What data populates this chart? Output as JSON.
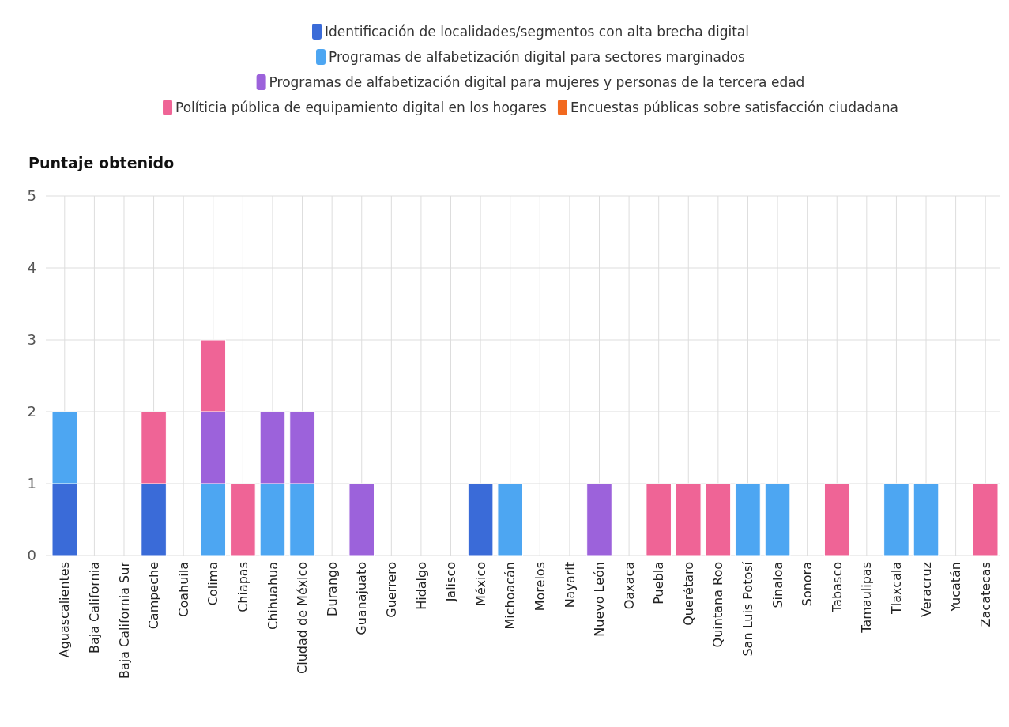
{
  "chart_data": {
    "type": "bar",
    "stacked": true,
    "ylabel": "Puntaje obtenido",
    "legend": "top",
    "grid": true,
    "ylim": [
      0,
      5
    ],
    "yticks": [
      0,
      1,
      2,
      3,
      4,
      5
    ],
    "categories": [
      "Aguascalientes",
      "Baja California",
      "Baja California Sur",
      "Campeche",
      "Coahuila",
      "Colima",
      "Chiapas",
      "Chihuahua",
      "Ciudad de México",
      "Durango",
      "Guanajuato",
      "Guerrero",
      "Hidalgo",
      "Jalisco",
      "México",
      "Michoacán",
      "Morelos",
      "Nayarit",
      "Nuevo León",
      "Oaxaca",
      "Puebla",
      "Querétaro",
      "Quintana Roo",
      "San Luis Potosí",
      "Sinaloa",
      "Sonora",
      "Tabasco",
      "Tamaulipas",
      "Tlaxcala",
      "Veracruz",
      "Yucatán",
      "Zacatecas"
    ],
    "series": [
      {
        "name": "Identificación de localidades/segmentos con alta brecha digital",
        "color": "#3a6bd8",
        "values": [
          1,
          0,
          0,
          1,
          0,
          0,
          0,
          0,
          0,
          0,
          0,
          0,
          0,
          0,
          1,
          0,
          0,
          0,
          0,
          0,
          0,
          0,
          0,
          0,
          0,
          0,
          0,
          0,
          0,
          0,
          0,
          0
        ]
      },
      {
        "name": "Programas de alfabetización digital para sectores marginados",
        "color": "#4da6f2",
        "values": [
          1,
          0,
          0,
          0,
          0,
          1,
          0,
          1,
          1,
          0,
          0,
          0,
          0,
          0,
          0,
          1,
          0,
          0,
          0,
          0,
          0,
          0,
          0,
          1,
          1,
          0,
          0,
          0,
          1,
          1,
          0,
          0
        ]
      },
      {
        "name": "Programas de alfabetización digital para mujeres y personas de la tercera edad",
        "color": "#9c62db",
        "values": [
          0,
          0,
          0,
          0,
          0,
          1,
          0,
          1,
          1,
          0,
          1,
          0,
          0,
          0,
          0,
          0,
          0,
          0,
          1,
          0,
          0,
          0,
          0,
          0,
          0,
          0,
          0,
          0,
          0,
          0,
          0,
          0
        ]
      },
      {
        "name": "Políticia pública de equipamiento digital en los hogares",
        "color": "#ef6496",
        "values": [
          0,
          0,
          0,
          1,
          0,
          1,
          1,
          0,
          0,
          0,
          0,
          0,
          0,
          0,
          0,
          0,
          0,
          0,
          0,
          0,
          1,
          1,
          1,
          0,
          0,
          0,
          1,
          0,
          0,
          0,
          0,
          1
        ]
      },
      {
        "name": "Encuestas públicas sobre satisfacción ciudadana",
        "color": "#f2691f",
        "values": [
          0,
          0,
          0,
          0,
          0,
          0,
          0,
          0,
          0,
          0,
          0,
          0,
          0,
          0,
          0,
          0,
          0,
          0,
          0,
          0,
          0,
          0,
          0,
          0,
          0,
          0,
          0,
          0,
          0,
          0,
          0,
          0
        ]
      }
    ]
  }
}
